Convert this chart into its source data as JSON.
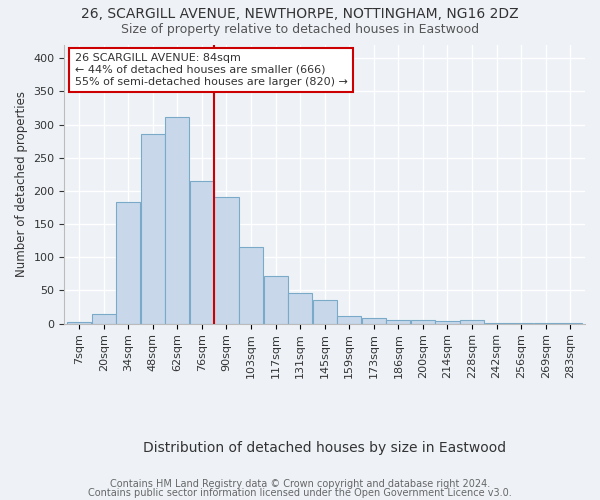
{
  "title1": "26, SCARGILL AVENUE, NEWTHORPE, NOTTINGHAM, NG16 2DZ",
  "title2": "Size of property relative to detached houses in Eastwood",
  "xlabel": "Distribution of detached houses by size in Eastwood",
  "ylabel": "Number of detached properties",
  "footer1": "Contains HM Land Registry data © Crown copyright and database right 2024.",
  "footer2": "Contains public sector information licensed under the Open Government Licence v3.0.",
  "annotation_line1": "26 SCARGILL AVENUE: 84sqm",
  "annotation_line2": "← 44% of detached houses are smaller (666)",
  "annotation_line3": "55% of semi-detached houses are larger (820) →",
  "bar_color": "#c8d8ea",
  "bar_edge_color": "#7aaac8",
  "vline_color": "#cc0000",
  "categories": [
    "7sqm",
    "20sqm",
    "34sqm",
    "48sqm",
    "62sqm",
    "76sqm",
    "90sqm",
    "103sqm",
    "117sqm",
    "131sqm",
    "145sqm",
    "159sqm",
    "173sqm",
    "186sqm",
    "200sqm",
    "214sqm",
    "228sqm",
    "242sqm",
    "256sqm",
    "269sqm",
    "283sqm"
  ],
  "values": [
    2,
    15,
    183,
    286,
    312,
    215,
    191,
    116,
    72,
    46,
    35,
    11,
    8,
    6,
    5,
    4,
    5,
    1,
    1,
    1,
    1
  ],
  "vline_x": 5.5,
  "ylim": [
    0,
    420
  ],
  "yticks": [
    0,
    50,
    100,
    150,
    200,
    250,
    300,
    350,
    400
  ],
  "background_color": "#eef2f7",
  "annotation_box_color": "white",
  "annotation_box_edge": "#cc0000",
  "title1_fontsize": 10,
  "title2_fontsize": 9,
  "xlabel_fontsize": 10,
  "ylabel_fontsize": 8.5,
  "tick_fontsize": 8,
  "footer_fontsize": 7
}
